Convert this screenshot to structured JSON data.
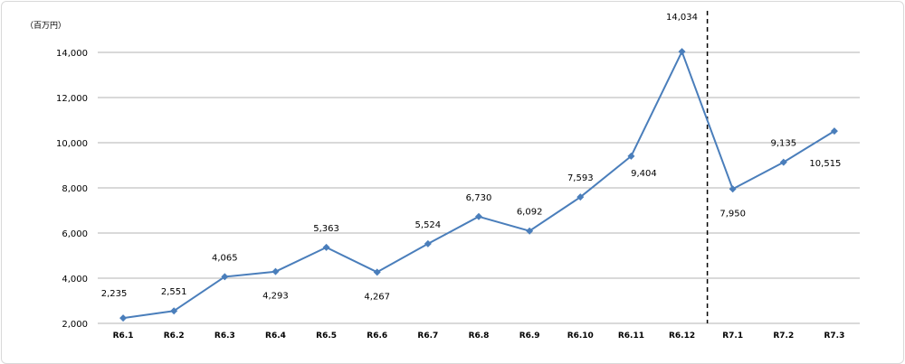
{
  "chart_data": {
    "type": "line",
    "unit_label": "（百万円）",
    "categories": [
      "R6.1",
      "R6.2",
      "R6.3",
      "R6.4",
      "R6.5",
      "R6.6",
      "R6.7",
      "R6.8",
      "R6.9",
      "R6.10",
      "R6.11",
      "R6.12",
      "R7.1",
      "R7.2",
      "R7.3"
    ],
    "series": [
      {
        "values": [
          2235,
          2551,
          4065,
          4293,
          5363,
          4267,
          5524,
          6730,
          6092,
          7593,
          9404,
          14034,
          7950,
          9135,
          10515
        ]
      }
    ],
    "data_labels": [
      "2,235",
      "2,551",
      "4,065",
      "4,293",
      "5,363",
      "4,267",
      "5,524",
      "6,730",
      "6,092",
      "7,593",
      "9,404",
      "14,034",
      "7,950",
      "9,135",
      "10,515"
    ],
    "y_ticks": [
      2000,
      4000,
      6000,
      8000,
      10000,
      12000,
      14000
    ],
    "y_tick_labels": [
      "2,000",
      "4,000",
      "6,000",
      "8,000",
      "10,000",
      "12,000",
      "14,000"
    ],
    "ylim": [
      2000,
      14000
    ],
    "grid": true,
    "divider_after_category": "R6.12",
    "line_color": "#4a7ebb",
    "grid_color": "#b3b3b3",
    "divider_color": "#000000"
  }
}
